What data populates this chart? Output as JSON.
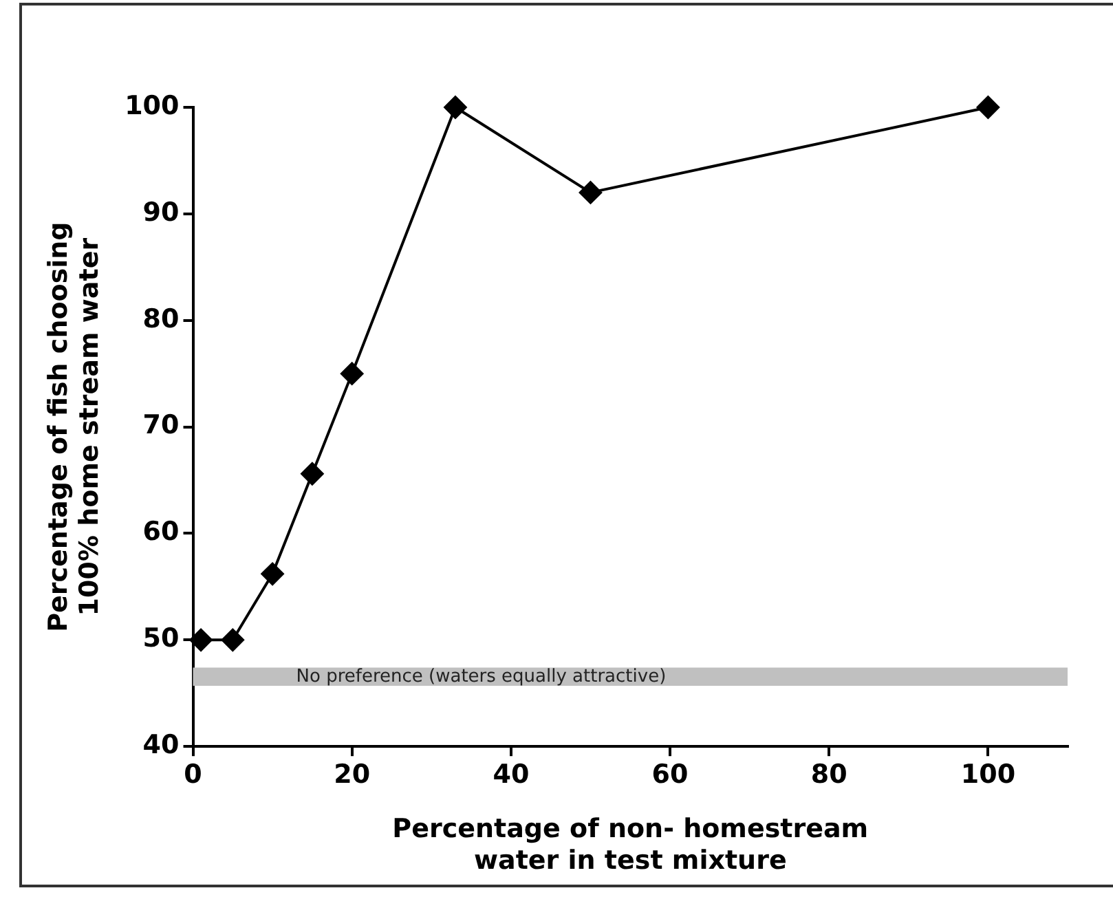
{
  "chart_data": {
    "type": "line",
    "xlabel": "Percentage of non- homestream\nwater in test mixture",
    "ylabel": "Percentage of fish choosing\n100% home stream water",
    "x": [
      1,
      5,
      10,
      15,
      20,
      33,
      50,
      100
    ],
    "series": [
      {
        "color": "#000000",
        "values": [
          50,
          50,
          56.2,
          65.6,
          75,
          100,
          92,
          100
        ]
      }
    ],
    "xlim": [
      0,
      110
    ],
    "xticks": [
      0,
      20,
      40,
      60,
      80,
      100
    ],
    "ylim": [
      40,
      100
    ],
    "yticks": [
      40,
      50,
      60,
      70,
      80,
      90,
      100
    ],
    "bands": [
      {
        "axis": "y",
        "from": 45.7,
        "to": 47.4,
        "label": "No preference (waters equally attractive)",
        "color": "#c0c0c0"
      }
    ],
    "grid": false,
    "legend": false,
    "marker": "diamond",
    "line_style": "solid"
  }
}
